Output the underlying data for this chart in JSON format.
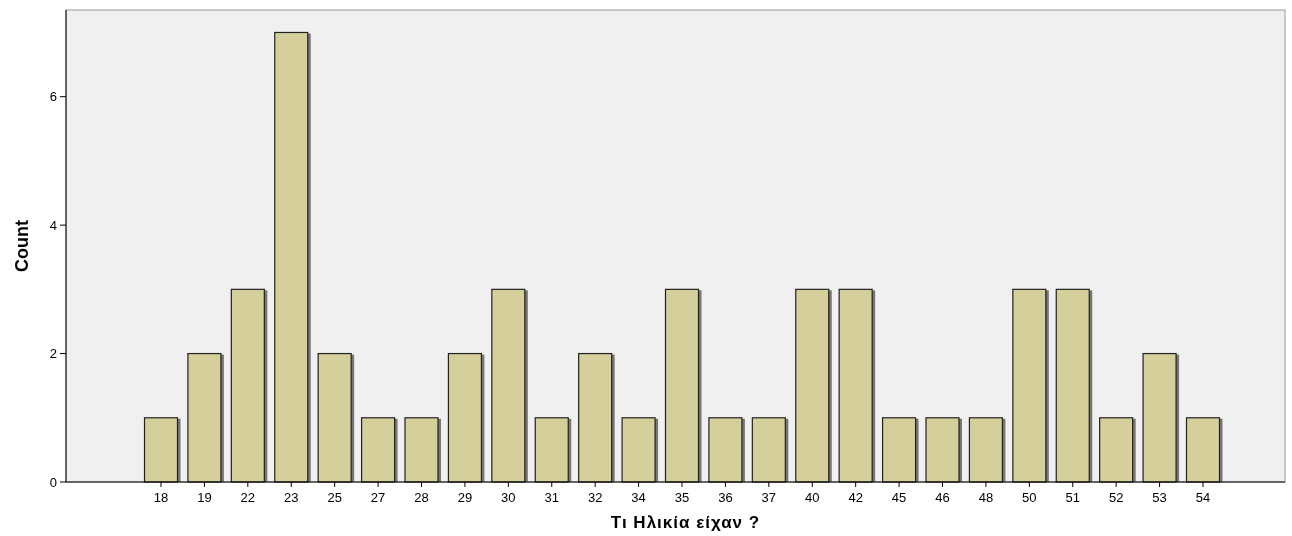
{
  "chart_data": {
    "type": "bar",
    "xlabel": "Τι Ηλικία είχαν ?",
    "ylabel": "Count",
    "categories": [
      "18",
      "19",
      "22",
      "23",
      "25",
      "27",
      "28",
      "29",
      "30",
      "31",
      "32",
      "34",
      "35",
      "36",
      "37",
      "40",
      "42",
      "45",
      "46",
      "48",
      "50",
      "51",
      "52",
      "53",
      "54"
    ],
    "values": [
      1,
      2,
      3,
      7,
      2,
      1,
      1,
      2,
      3,
      1,
      2,
      1,
      3,
      1,
      1,
      3,
      3,
      1,
      1,
      1,
      3,
      3,
      1,
      2,
      1
    ],
    "color": "#d4cf9b",
    "ylim": [
      0,
      7.35
    ],
    "yticks": [
      0,
      2,
      4,
      6
    ],
    "grid": false
  }
}
